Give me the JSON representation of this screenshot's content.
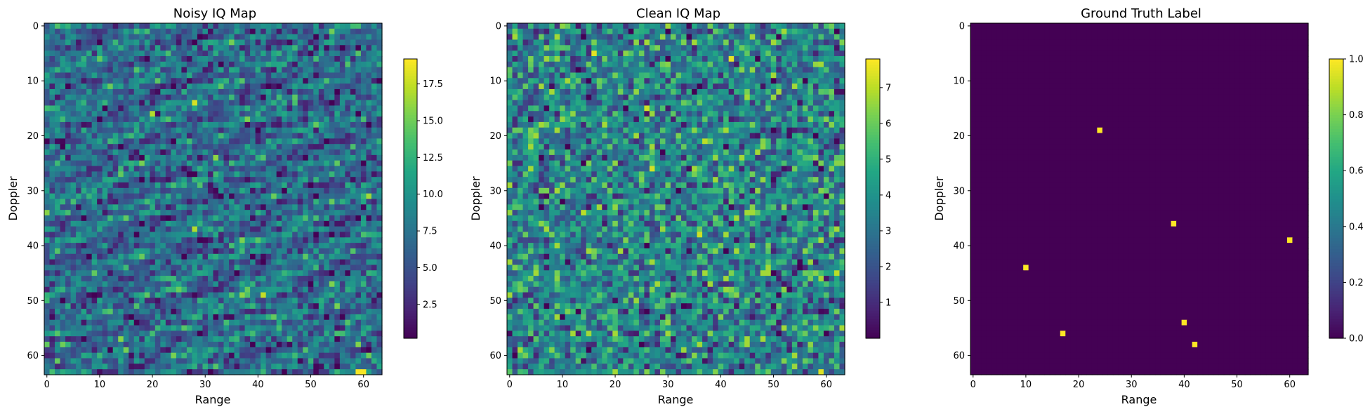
{
  "chart_data": [
    {
      "type": "heatmap",
      "title": "Noisy IQ Map",
      "xlabel": "Range",
      "ylabel": "Doppler",
      "grid_size": [
        64,
        64
      ],
      "xlim": [
        0,
        63
      ],
      "ylim": [
        63,
        0
      ],
      "x_ticks": [
        0,
        10,
        20,
        30,
        40,
        50,
        60
      ],
      "y_ticks": [
        0,
        10,
        20,
        30,
        40,
        50,
        60
      ],
      "colormap": "viridis",
      "value_range": [
        0.2,
        19.2
      ],
      "colorbar_ticks": [
        "2.5",
        "5.0",
        "7.5",
        "10.0",
        "12.5",
        "15.0",
        "17.5"
      ],
      "colorbar_values": [
        2.5,
        5.0,
        7.5,
        10.0,
        12.5,
        15.0,
        17.5
      ],
      "background_mean": 7.0,
      "hotspots": [
        {
          "x": 20,
          "y": 16,
          "value": 17.0
        },
        {
          "x": 28,
          "y": 14,
          "value": 18.0
        },
        {
          "x": 32,
          "y": 24,
          "value": 16.0
        },
        {
          "x": 28,
          "y": 37,
          "value": 17.0
        },
        {
          "x": 41,
          "y": 49,
          "value": 17.5
        },
        {
          "x": 59,
          "y": 63,
          "value": 19.0
        },
        {
          "x": 60,
          "y": 63,
          "value": 19.0
        }
      ]
    },
    {
      "type": "heatmap",
      "title": "Clean IQ Map",
      "xlabel": "Range",
      "ylabel": "Doppler",
      "grid_size": [
        64,
        64
      ],
      "xlim": [
        0,
        63
      ],
      "ylim": [
        63,
        0
      ],
      "x_ticks": [
        0,
        10,
        20,
        30,
        40,
        50,
        60
      ],
      "y_ticks": [
        0,
        10,
        20,
        30,
        40,
        50,
        60
      ],
      "colormap": "viridis",
      "value_range": [
        0.0,
        7.8
      ],
      "colorbar_ticks": [
        "1",
        "2",
        "3",
        "4",
        "5",
        "6",
        "7"
      ],
      "colorbar_values": [
        1,
        2,
        3,
        4,
        5,
        6,
        7
      ],
      "background_mean": 3.5,
      "hotspots": [
        {
          "x": 16,
          "y": 5,
          "value": 7.5
        },
        {
          "x": 42,
          "y": 6,
          "value": 7.5
        },
        {
          "x": 26,
          "y": 15,
          "value": 7.2
        },
        {
          "x": 37,
          "y": 21,
          "value": 7.0
        },
        {
          "x": 27,
          "y": 26,
          "value": 7.3
        },
        {
          "x": 14,
          "y": 34,
          "value": 7.0
        },
        {
          "x": 36,
          "y": 38,
          "value": 7.2
        },
        {
          "x": 62,
          "y": 45,
          "value": 7.0
        },
        {
          "x": 59,
          "y": 63,
          "value": 7.4
        }
      ]
    },
    {
      "type": "heatmap",
      "title": "Ground Truth Label",
      "xlabel": "Range",
      "ylabel": "Doppler",
      "grid_size": [
        64,
        64
      ],
      "xlim": [
        0,
        63
      ],
      "ylim": [
        63,
        0
      ],
      "x_ticks": [
        0,
        10,
        20,
        30,
        40,
        50,
        60
      ],
      "y_ticks": [
        0,
        10,
        20,
        30,
        40,
        50,
        60
      ],
      "colormap": "viridis",
      "value_range": [
        0.0,
        1.0
      ],
      "colorbar_ticks": [
        "0.0",
        "0.2",
        "0.4",
        "0.6",
        "0.8",
        "1.0"
      ],
      "colorbar_values": [
        0.0,
        0.2,
        0.4,
        0.6,
        0.8,
        1.0
      ],
      "background_mean": 0.0,
      "targets": [
        {
          "x": 24,
          "y": 19,
          "value": 1
        },
        {
          "x": 38,
          "y": 36,
          "value": 1
        },
        {
          "x": 60,
          "y": 39,
          "value": 1
        },
        {
          "x": 10,
          "y": 44,
          "value": 1
        },
        {
          "x": 40,
          "y": 54,
          "value": 1
        },
        {
          "x": 17,
          "y": 56,
          "value": 1
        },
        {
          "x": 42,
          "y": 58,
          "value": 1
        }
      ]
    }
  ]
}
